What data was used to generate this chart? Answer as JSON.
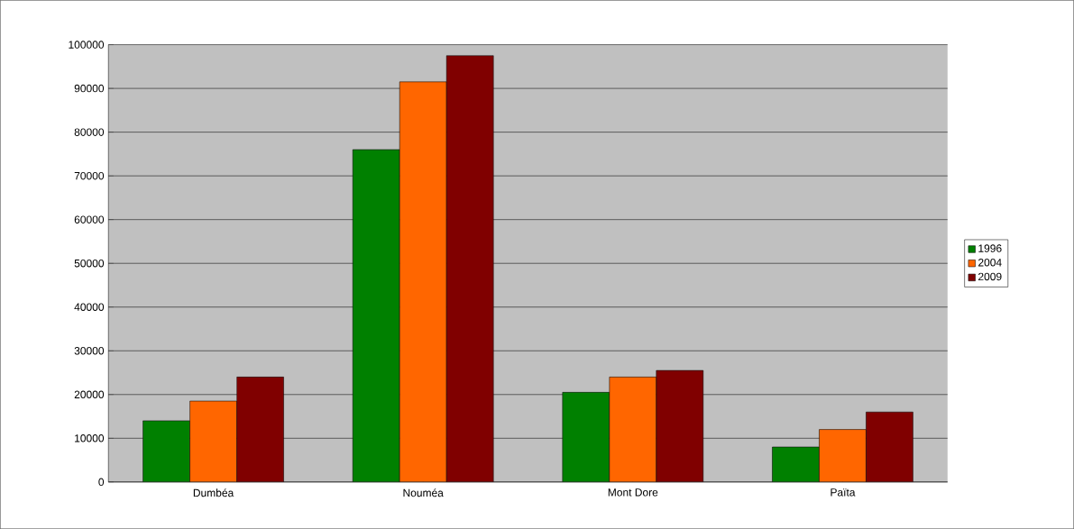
{
  "chart_data": {
    "type": "bar",
    "categories": [
      "Dumbéa",
      "Nouméa",
      "Mont Dore",
      "Païta"
    ],
    "series": [
      {
        "name": "1996",
        "color": "#008000",
        "values": [
          14000,
          76000,
          20500,
          8000
        ]
      },
      {
        "name": "2004",
        "color": "#ff6600",
        "values": [
          18500,
          91500,
          24000,
          12000
        ]
      },
      {
        "name": "2009",
        "color": "#800000",
        "values": [
          24000,
          97500,
          25500,
          16000
        ]
      }
    ],
    "ylim": [
      0,
      100000
    ],
    "yticks": [
      0,
      10000,
      20000,
      30000,
      40000,
      50000,
      60000,
      70000,
      80000,
      90000,
      100000
    ],
    "grid": "y",
    "legend": "right"
  }
}
